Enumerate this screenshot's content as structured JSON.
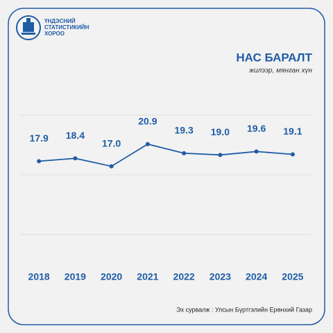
{
  "chart_data": {
    "type": "line",
    "org": [
      "ҮНДЭСНИЙ",
      "СТАТИСТИКИЙН",
      "ХОРОО"
    ],
    "title": "НАС БАРАЛТ",
    "subtitle": "жилээр, мянган хүн",
    "categories": [
      "2018",
      "2019",
      "2020",
      "2021",
      "2022",
      "2023",
      "2024",
      "2025"
    ],
    "values": [
      17.9,
      18.4,
      17.0,
      20.9,
      19.3,
      19.0,
      19.6,
      19.1
    ],
    "value_labels": [
      "17.9",
      "18.4",
      "17.0",
      "20.9",
      "19.3",
      "19.0",
      "19.6",
      "19.1"
    ],
    "color": "#1f5ca6",
    "ylim": [
      5,
      26
    ],
    "source": "Эх сурвалж : Улсын Бүртгэлийн Ерөнхий Газар"
  }
}
